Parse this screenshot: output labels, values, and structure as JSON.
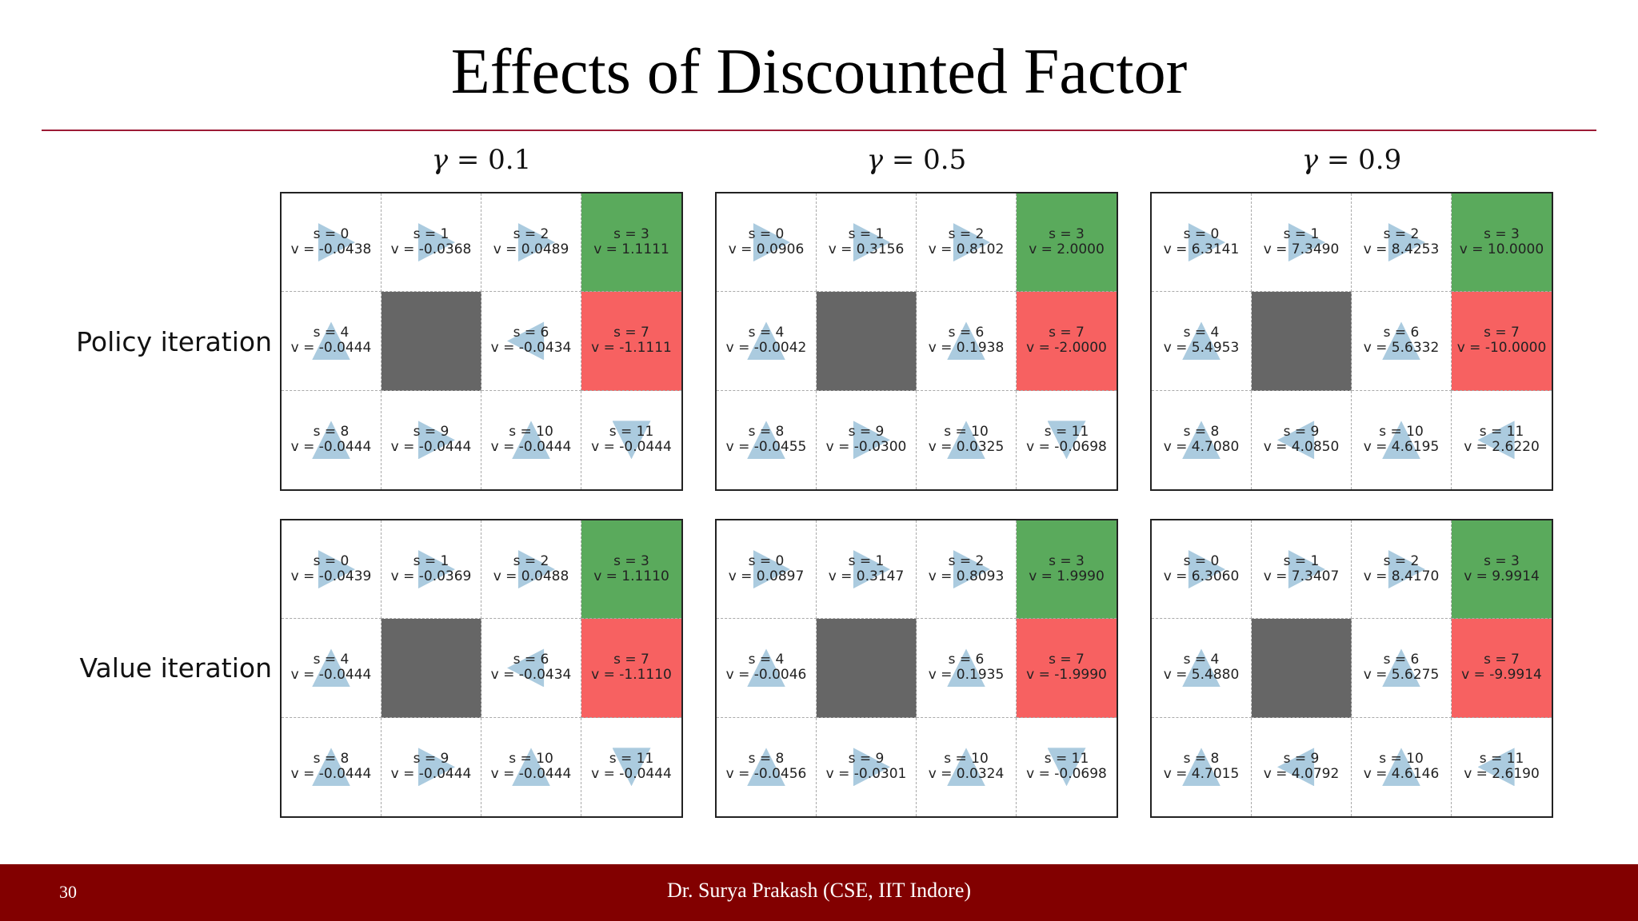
{
  "title": "Effects of  Discounted Factor",
  "gammas": [
    {
      "symbol": "γ",
      "value": "= 0.1"
    },
    {
      "symbol": "γ",
      "value": "= 0.5"
    },
    {
      "symbol": "γ",
      "value": "= 0.9"
    }
  ],
  "row_labels": [
    "Policy iteration",
    "Value iteration"
  ],
  "colors": {
    "goal": "#5aaa5c",
    "pit": "#f76161",
    "wall": "#666666",
    "arrow": "#a7c8dd",
    "rule": "#9c1b35",
    "footer": "#820000"
  },
  "grids": [
    [
      {
        "cells": [
          {
            "s": "s = 0",
            "v": "v = -0.0438",
            "dir": "right"
          },
          {
            "s": "s = 1",
            "v": "v = -0.0368",
            "dir": "right"
          },
          {
            "s": "s = 2",
            "v": "v = 0.0489",
            "dir": "right"
          },
          {
            "s": "s = 3",
            "v": "v = 1.1111",
            "type": "goal"
          },
          {
            "s": "s = 4",
            "v": "v = -0.0444",
            "dir": "up"
          },
          {
            "type": "wall"
          },
          {
            "s": "s = 6",
            "v": "v = -0.0434",
            "dir": "left"
          },
          {
            "s": "s = 7",
            "v": "v = -1.1111",
            "type": "pit"
          },
          {
            "s": "s = 8",
            "v": "v = -0.0444",
            "dir": "up"
          },
          {
            "s": "s = 9",
            "v": "v = -0.0444",
            "dir": "right"
          },
          {
            "s": "s = 10",
            "v": "v = -0.0444",
            "dir": "up"
          },
          {
            "s": "s = 11",
            "v": "v = -0.0444",
            "dir": "down"
          }
        ]
      },
      {
        "cells": [
          {
            "s": "s = 0",
            "v": "v = 0.0906",
            "dir": "right"
          },
          {
            "s": "s = 1",
            "v": "v = 0.3156",
            "dir": "right"
          },
          {
            "s": "s = 2",
            "v": "v = 0.8102",
            "dir": "right"
          },
          {
            "s": "s = 3",
            "v": "v = 2.0000",
            "type": "goal"
          },
          {
            "s": "s = 4",
            "v": "v = -0.0042",
            "dir": "up"
          },
          {
            "type": "wall"
          },
          {
            "s": "s = 6",
            "v": "v = 0.1938",
            "dir": "up"
          },
          {
            "s": "s = 7",
            "v": "v = -2.0000",
            "type": "pit"
          },
          {
            "s": "s = 8",
            "v": "v = -0.0455",
            "dir": "up"
          },
          {
            "s": "s = 9",
            "v": "v = -0.0300",
            "dir": "right"
          },
          {
            "s": "s = 10",
            "v": "v = 0.0325",
            "dir": "up"
          },
          {
            "s": "s = 11",
            "v": "v = -0.0698",
            "dir": "down"
          }
        ]
      },
      {
        "cells": [
          {
            "s": "s = 0",
            "v": "v = 6.3141",
            "dir": "right"
          },
          {
            "s": "s = 1",
            "v": "v = 7.3490",
            "dir": "right"
          },
          {
            "s": "s = 2",
            "v": "v = 8.4253",
            "dir": "right"
          },
          {
            "s": "s = 3",
            "v": "v = 10.0000",
            "type": "goal"
          },
          {
            "s": "s = 4",
            "v": "v = 5.4953",
            "dir": "up"
          },
          {
            "type": "wall"
          },
          {
            "s": "s = 6",
            "v": "v = 5.6332",
            "dir": "up"
          },
          {
            "s": "s = 7",
            "v": "v = -10.0000",
            "type": "pit"
          },
          {
            "s": "s = 8",
            "v": "v = 4.7080",
            "dir": "up"
          },
          {
            "s": "s = 9",
            "v": "v = 4.0850",
            "dir": "left"
          },
          {
            "s": "s = 10",
            "v": "v = 4.6195",
            "dir": "up"
          },
          {
            "s": "s = 11",
            "v": "v = 2.6220",
            "dir": "left"
          }
        ]
      }
    ],
    [
      {
        "cells": [
          {
            "s": "s = 0",
            "v": "v = -0.0439",
            "dir": "right"
          },
          {
            "s": "s = 1",
            "v": "v = -0.0369",
            "dir": "right"
          },
          {
            "s": "s = 2",
            "v": "v = 0.0488",
            "dir": "right"
          },
          {
            "s": "s = 3",
            "v": "v = 1.1110",
            "type": "goal"
          },
          {
            "s": "s = 4",
            "v": "v = -0.0444",
            "dir": "up"
          },
          {
            "type": "wall"
          },
          {
            "s": "s = 6",
            "v": "v = -0.0434",
            "dir": "left"
          },
          {
            "s": "s = 7",
            "v": "v = -1.1110",
            "type": "pit"
          },
          {
            "s": "s = 8",
            "v": "v = -0.0444",
            "dir": "up"
          },
          {
            "s": "s = 9",
            "v": "v = -0.0444",
            "dir": "right"
          },
          {
            "s": "s = 10",
            "v": "v = -0.0444",
            "dir": "up"
          },
          {
            "s": "s = 11",
            "v": "v = -0.0444",
            "dir": "down"
          }
        ]
      },
      {
        "cells": [
          {
            "s": "s = 0",
            "v": "v = 0.0897",
            "dir": "right"
          },
          {
            "s": "s = 1",
            "v": "v = 0.3147",
            "dir": "right"
          },
          {
            "s": "s = 2",
            "v": "v = 0.8093",
            "dir": "right"
          },
          {
            "s": "s = 3",
            "v": "v = 1.9990",
            "type": "goal"
          },
          {
            "s": "s = 4",
            "v": "v = -0.0046",
            "dir": "up"
          },
          {
            "type": "wall"
          },
          {
            "s": "s = 6",
            "v": "v = 0.1935",
            "dir": "up"
          },
          {
            "s": "s = 7",
            "v": "v = -1.9990",
            "type": "pit"
          },
          {
            "s": "s = 8",
            "v": "v = -0.0456",
            "dir": "up"
          },
          {
            "s": "s = 9",
            "v": "v = -0.0301",
            "dir": "right"
          },
          {
            "s": "s = 10",
            "v": "v = 0.0324",
            "dir": "up"
          },
          {
            "s": "s = 11",
            "v": "v = -0.0698",
            "dir": "down"
          }
        ]
      },
      {
        "cells": [
          {
            "s": "s = 0",
            "v": "v = 6.3060",
            "dir": "right"
          },
          {
            "s": "s = 1",
            "v": "v = 7.3407",
            "dir": "right"
          },
          {
            "s": "s = 2",
            "v": "v = 8.4170",
            "dir": "right"
          },
          {
            "s": "s = 3",
            "v": "v = 9.9914",
            "type": "goal"
          },
          {
            "s": "s = 4",
            "v": "v = 5.4880",
            "dir": "up"
          },
          {
            "type": "wall"
          },
          {
            "s": "s = 6",
            "v": "v = 5.6275",
            "dir": "up"
          },
          {
            "s": "s = 7",
            "v": "v = -9.9914",
            "type": "pit"
          },
          {
            "s": "s = 8",
            "v": "v = 4.7015",
            "dir": "up"
          },
          {
            "s": "s = 9",
            "v": "v = 4.0792",
            "dir": "left"
          },
          {
            "s": "s = 10",
            "v": "v = 4.6146",
            "dir": "up"
          },
          {
            "s": "s = 11",
            "v": "v = 2.6190",
            "dir": "left"
          }
        ]
      }
    ]
  ],
  "footer": {
    "page": "30",
    "author": "Dr. Surya Prakash (CSE, IIT Indore)"
  }
}
